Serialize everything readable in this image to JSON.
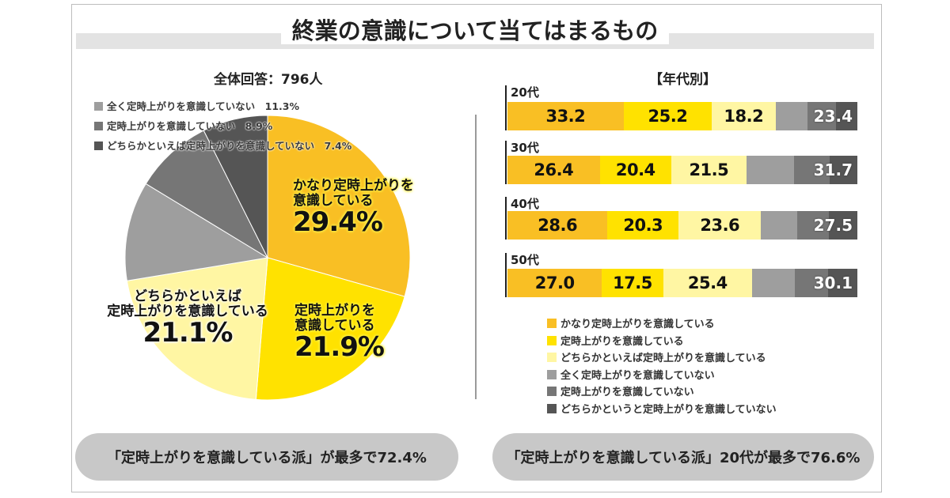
{
  "title": "終業の意識について当てはまるもの",
  "left": {
    "subtitle": "全体回答：796人",
    "small_legend": [
      {
        "label": "全く定時上がりを意識していない",
        "value": "11.3%",
        "color": "#9e9e9e"
      },
      {
        "label": "定時上がりを意識していない",
        "value": "8.9%",
        "color": "#767676"
      },
      {
        "label": "どちらかといえば定時上がりを意識していない",
        "value": "7.4%",
        "color": "#555555"
      }
    ],
    "labels": {
      "a_text1": "かなり定時上がりを",
      "a_text2": "意識している",
      "a_pct": "29.4%",
      "b_text1": "定時上がりを",
      "b_text2": "意識している",
      "b_pct": "21.9%",
      "c_text1": "どちらかといえば",
      "c_text2": "定時上がりを意識している",
      "c_pct": "21.1%"
    },
    "pill": "「定時上がりを意識している派」が最多で72.4%"
  },
  "right": {
    "subtitle": "【年代別】",
    "pill": "「定時上がりを意識している派」20代が最多で76.6%"
  },
  "chart_data": [
    {
      "type": "pie",
      "title": "全体回答：796人",
      "slices": [
        {
          "label": "かなり定時上がりを意識している",
          "value": 29.4,
          "color": "#f9bf24"
        },
        {
          "label": "定時上がりを意識している",
          "value": 21.9,
          "color": "#ffe200"
        },
        {
          "label": "どちらかといえば定時上がりを意識している",
          "value": 21.1,
          "color": "#fff6a3"
        },
        {
          "label": "全く定時上がりを意識していない",
          "value": 11.3,
          "color": "#9e9e9e"
        },
        {
          "label": "定時上がりを意識していない",
          "value": 8.9,
          "color": "#767676"
        },
        {
          "label": "どちらかといえば定時上がりを意識していない",
          "value": 7.4,
          "color": "#555555"
        }
      ]
    },
    {
      "type": "bar",
      "stacked": true,
      "orientation": "horizontal",
      "title": "【年代別】",
      "categories": [
        "20代",
        "30代",
        "40代",
        "50代"
      ],
      "series": [
        {
          "name": "かなり定時上がりを意識している",
          "color": "#f9bf24",
          "values": [
            33.2,
            26.4,
            28.6,
            27.0
          ],
          "labels": [
            "33.2",
            "26.4",
            "28.6",
            "27.0"
          ]
        },
        {
          "name": "定時上がりを意識している",
          "color": "#ffe200",
          "values": [
            25.2,
            20.4,
            20.3,
            17.5
          ],
          "labels": [
            "25.2",
            "20.4",
            "20.3",
            "17.5"
          ]
        },
        {
          "name": "どちらかといえば定時上がりを意識している",
          "color": "#fff6a3",
          "values": [
            18.2,
            21.5,
            23.6,
            25.4
          ],
          "labels": [
            "18.2",
            "21.5",
            "23.6",
            "25.4"
          ]
        },
        {
          "name": "全く定時上がりを意識していない",
          "color": "#9e9e9e",
          "values": [
            9.2,
            13.6,
            10.3,
            12.2
          ]
        },
        {
          "name": "定時上がりを意識していない",
          "color": "#767676",
          "values": [
            8.0,
            10.1,
            9.0,
            9.6
          ]
        },
        {
          "name": "どちらかというと定時上がりを意識していない",
          "color": "#555555",
          "values": [
            6.2,
            8.0,
            8.2,
            8.3
          ]
        }
      ],
      "negative_totals": [
        "23.4",
        "31.7",
        "27.5",
        "30.1"
      ],
      "xlim": [
        0,
        100
      ]
    }
  ]
}
